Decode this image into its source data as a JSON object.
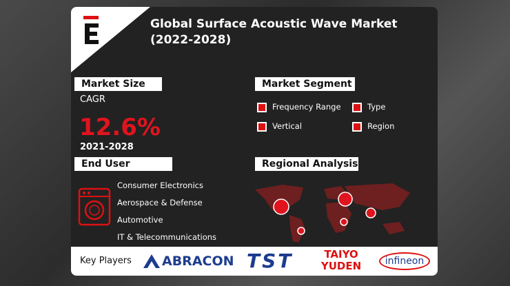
{
  "header": {
    "title": "Global Surface Acoustic Wave Market (2022-2028)"
  },
  "market_size": {
    "heading": "Market Size",
    "metric": "CAGR",
    "value": "12.6%",
    "period": "2021-2028"
  },
  "market_segment": {
    "heading": "Market Segment",
    "items": [
      "Frequency Range",
      "Type",
      "Vertical",
      "Region"
    ]
  },
  "end_user": {
    "heading": "End User",
    "items": [
      "Consumer Electronics",
      "Aerospace & Defense",
      "Automotive",
      "IT & Telecommunications"
    ]
  },
  "regional_analysis": {
    "heading": "Regional Analysis"
  },
  "key_players": {
    "label": "Key Players",
    "companies": [
      "ABRACON",
      "TST",
      "TAIYO YUDEN",
      "infineon"
    ]
  }
}
